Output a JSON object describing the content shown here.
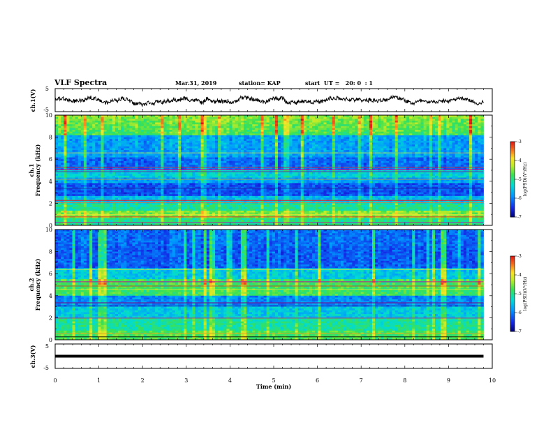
{
  "header": {
    "title": "VLF Spectra",
    "date": "Mar.31, 2019",
    "station": "station= KAP",
    "start": "start  UT =   20: 0  : 1"
  },
  "chart_data": [
    {
      "type": "line",
      "panel": "ch1-waveform",
      "ylabel": "ch.1(V)",
      "ylim": [
        -5,
        5
      ],
      "y_ticks": [
        "5",
        "-5"
      ],
      "xlim": [
        0,
        10
      ],
      "x_end": 9.8,
      "description_level": "noisy signal oscillating around 0 V"
    },
    {
      "type": "heatmap",
      "panel": "ch1-spectrogram",
      "title": "ch.1",
      "ylabel": "Frequency (kHz)",
      "ylim": [
        0,
        10
      ],
      "y_ticks": [
        "0",
        "2",
        "4",
        "6",
        "8",
        "10"
      ],
      "xlim": [
        0,
        10
      ],
      "x_end": 9.8,
      "colorbar": {
        "label": "log(PSD)(V²/Hz)",
        "range": [
          -7,
          -3
        ],
        "ticks": [
          "-3",
          "-4",
          "-5",
          "-6",
          "-7"
        ]
      }
    },
    {
      "type": "heatmap",
      "panel": "ch2-spectrogram",
      "title": "ch.2",
      "ylabel": "Frequency (kHz)",
      "ylim": [
        0,
        10
      ],
      "y_ticks": [
        "0",
        "2",
        "4",
        "6",
        "8",
        "10"
      ],
      "xlim": [
        0,
        10
      ],
      "x_end": 9.8,
      "colorbar": {
        "label": "log(PSD)(V²/Hz)",
        "range": [
          -7,
          -3
        ],
        "ticks": [
          "-3",
          "-4",
          "-5",
          "-6",
          "-7"
        ]
      }
    },
    {
      "type": "line",
      "panel": "ch3-waveform",
      "ylabel": "ch.3(V)",
      "ylim": [
        -5,
        5
      ],
      "y_ticks": [
        "5",
        "-5"
      ],
      "level": 0,
      "xlim": [
        0,
        10
      ],
      "x_end": 9.8
    }
  ],
  "x_axis": {
    "label": "Time  (min)",
    "ticks": [
      "0",
      "1",
      "2",
      "3",
      "4",
      "5",
      "6",
      "7",
      "8",
      "9",
      "10"
    ]
  },
  "colors": {
    "deep": "#00008c",
    "blue": "#1e3cff",
    "cyan": "#00c8dc",
    "green": "#32d25a",
    "yellow": "#f0e632",
    "red": "#e62020",
    "magenta": "#b41e96"
  }
}
